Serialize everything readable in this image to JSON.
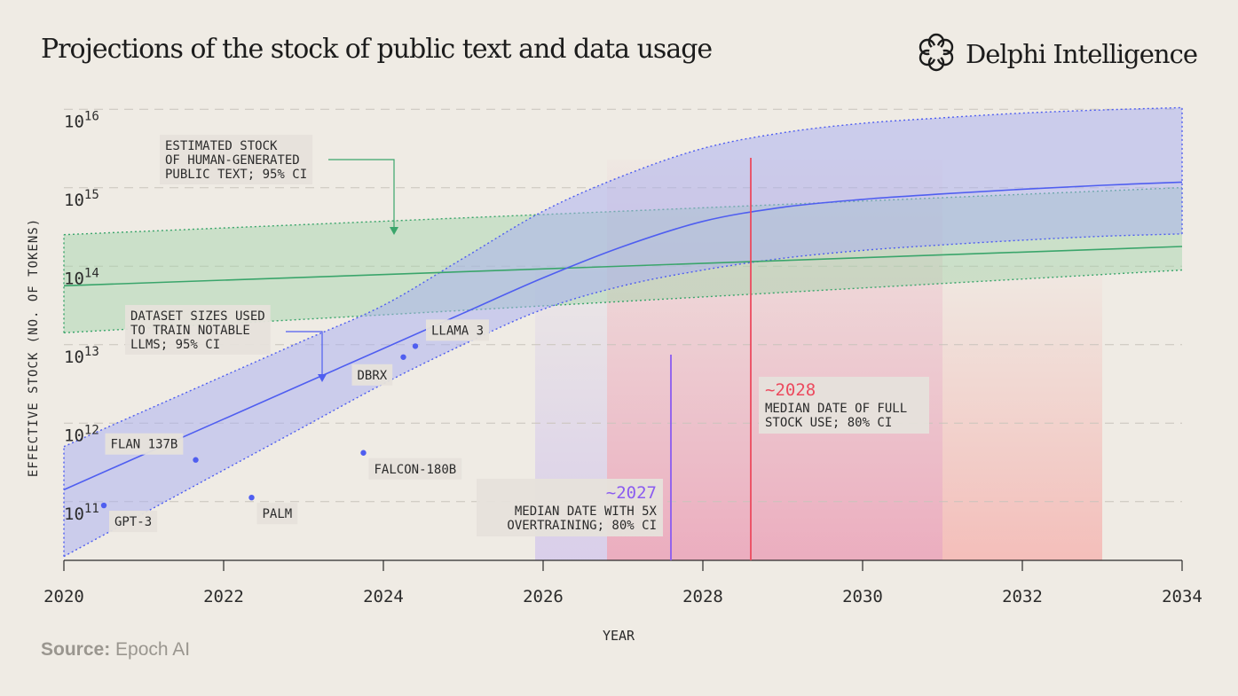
{
  "header": {
    "title": "Projections of the stock of public text and data usage",
    "brand": "Delphi Intelligence"
  },
  "footer": {
    "source_label": "Source:",
    "source_value": "Epoch AI"
  },
  "colors": {
    "background": "#efebe4",
    "stock_line": "#3aa56b",
    "stock_band": "#9fd3a8",
    "dataset_line": "#4f5ef0",
    "dataset_band": "#a8adf2",
    "purple_accent": "#8b5cf0",
    "red_accent": "#ec4a5e",
    "pink_band": "#f2a3ae"
  },
  "chart_data": {
    "type": "line",
    "xlabel": "YEAR",
    "ylabel": "EFFECTIVE STOCK (NO. OF TOKENS)",
    "xlim": [
      2020,
      2034
    ],
    "ylim_log10": [
      10.5,
      16
    ],
    "y_scale": "log",
    "x_ticks": [
      2020,
      2022,
      2024,
      2026,
      2028,
      2030,
      2032,
      2034
    ],
    "y_ticks": [
      {
        "base": "10",
        "exp": "11",
        "value": 11
      },
      {
        "base": "10",
        "exp": "12",
        "value": 12
      },
      {
        "base": "10",
        "exp": "13",
        "value": 13
      },
      {
        "base": "10",
        "exp": "14",
        "value": 14
      },
      {
        "base": "10",
        "exp": "15",
        "value": 15
      },
      {
        "base": "10",
        "exp": "16",
        "value": 16
      }
    ],
    "grid": "horizontal-dashed",
    "series": [
      {
        "key": "stock",
        "label_lines": [
          "ESTIMATED STOCK",
          "OF HUMAN-GENERATED",
          "PUBLIC TEXT; 95% CI"
        ],
        "median": {
          "x": [
            2020,
            2034
          ],
          "y": [
            14.0,
            14.5
          ]
        },
        "lower": {
          "x": [
            2020,
            2034
          ],
          "y": [
            13.4,
            14.2
          ]
        },
        "upper": {
          "x": [
            2020,
            2034
          ],
          "y": [
            14.65,
            15.25
          ]
        }
      },
      {
        "key": "dataset",
        "label_lines": [
          "DATASET SIZES USED",
          "TO TRAIN NOTABLE",
          "LLMS; 95% CI"
        ],
        "median": {
          "x": [
            2020,
            2021,
            2022,
            2023,
            2024,
            2025,
            2026,
            2027,
            2028,
            2029,
            2030,
            2031,
            2032,
            2033,
            2034
          ],
          "y": [
            11.4,
            11.85,
            12.3,
            12.75,
            13.2,
            13.65,
            14.1,
            14.5,
            14.82,
            15.0,
            15.1,
            15.17,
            15.23,
            15.28,
            15.32
          ]
        },
        "lower": {
          "x": [
            2020,
            2021,
            2022,
            2023,
            2024,
            2025,
            2026,
            2027,
            2028,
            2029,
            2030,
            2031,
            2032,
            2033,
            2034
          ],
          "y": [
            10.55,
            11.1,
            11.65,
            12.2,
            12.75,
            13.25,
            13.7,
            14.0,
            14.2,
            14.35,
            14.45,
            14.52,
            14.58,
            14.63,
            14.66
          ]
        },
        "upper": {
          "x": [
            2020,
            2021,
            2022,
            2023,
            2024,
            2025,
            2026,
            2027,
            2028,
            2029,
            2030,
            2031,
            2032,
            2033,
            2034
          ],
          "y": [
            11.95,
            12.4,
            12.85,
            13.3,
            13.75,
            14.35,
            14.95,
            15.4,
            15.75,
            15.95,
            16.07,
            16.14,
            16.2,
            16.24,
            16.27
          ]
        }
      }
    ],
    "models": [
      {
        "name": "GPT-3",
        "x": 2020.5,
        "y": 11.2,
        "label_pos": "below-right"
      },
      {
        "name": "FLAN 137B",
        "x": 2021.65,
        "y": 11.78,
        "label_pos": "above-left"
      },
      {
        "name": "PALM",
        "x": 2022.35,
        "y": 11.3,
        "label_pos": "below-right"
      },
      {
        "name": "FALCON-180B",
        "x": 2023.75,
        "y": 11.87,
        "label_pos": "below-right"
      },
      {
        "name": "DBRX",
        "x": 2024.25,
        "y": 13.09,
        "label_pos": "below-left"
      },
      {
        "name": "LLAMA 3",
        "x": 2024.4,
        "y": 13.23,
        "label_pos": "above-right"
      }
    ],
    "regions": [
      {
        "key": "purple",
        "x": [
          2025.9,
          2026.8
        ],
        "color": "#d8cdea"
      },
      {
        "key": "pink-80ci",
        "x": [
          2026.8,
          2031
        ],
        "color": "#ebaabd"
      },
      {
        "key": "pink-outer",
        "x": [
          2031,
          2033
        ],
        "color": "#f4bcb8"
      }
    ],
    "annotations": [
      {
        "key": "a2027",
        "x": 2027.6,
        "headline": "~2027",
        "text_lines": [
          "MEDIAN DATE WITH 5X",
          "OVERTRAINING; 80% CI"
        ],
        "color": "#8b5cf0"
      },
      {
        "key": "a2028",
        "x": 2028.6,
        "headline": "~2028",
        "text_lines": [
          "MEDIAN DATE OF FULL",
          "STOCK USE; 80% CI"
        ],
        "color": "#ec4a5e"
      }
    ]
  }
}
